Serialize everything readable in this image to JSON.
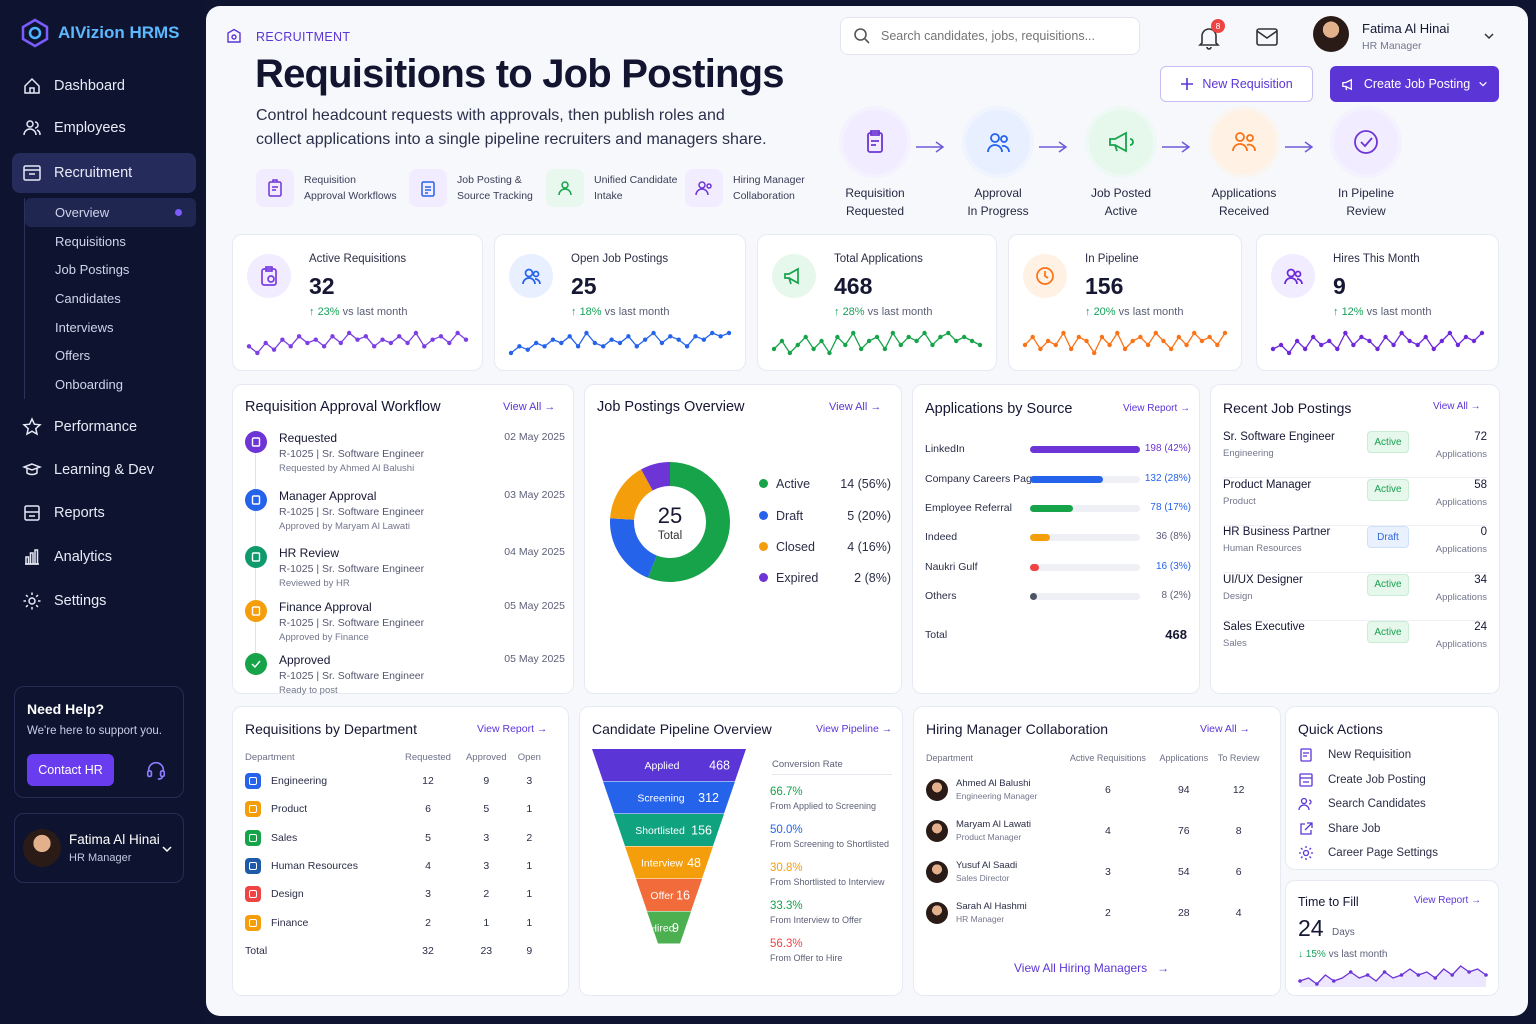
{
  "app": {
    "name": "AIVizion HRMS"
  },
  "sidebar": {
    "items": [
      {
        "label": "Dashboard",
        "icon": "home-icon"
      },
      {
        "label": "Employees",
        "icon": "users-icon"
      },
      {
        "label": "Recruitment",
        "icon": "briefcase-icon"
      },
      {
        "label": "Performance",
        "icon": "star-icon"
      },
      {
        "label": "Learning & Dev",
        "icon": "book-icon"
      },
      {
        "label": "Reports",
        "icon": "report-icon"
      },
      {
        "label": "Analytics",
        "icon": "analytics-icon"
      },
      {
        "label": "Settings",
        "icon": "gear-icon"
      }
    ],
    "subitems": [
      "Overview",
      "Requisitions",
      "Job Postings",
      "Candidates",
      "Interviews",
      "Offers",
      "Onboarding"
    ],
    "help": {
      "title": "Need Help?",
      "text": "We're here to support you.",
      "button": "Contact HR"
    },
    "user": {
      "name": "Fatima Al Hinai",
      "role": "HR Manager"
    }
  },
  "header": {
    "section": "RECRUITMENT",
    "title": "Requisitions to Job Postings",
    "lead1": "Control headcount requests with approvals, then publish roles and",
    "lead2": "collect applications into a single pipeline recruiters and managers share.",
    "search_placeholder": "Search candidates, jobs, requisitions...",
    "notifications": "8",
    "user": {
      "name": "Fatima Al Hinai",
      "role": "HR Manager"
    },
    "new_req": "New Requisition",
    "create_post": "Create Job Posting",
    "features": [
      {
        "l1": "Requisition",
        "l2": "Approval Workflows"
      },
      {
        "l1": "Job Posting &",
        "l2": "Source Tracking"
      },
      {
        "l1": "Unified Candidate",
        "l2": "Intake"
      },
      {
        "l1": "Hiring Manager",
        "l2": "Collaboration"
      }
    ],
    "stages": [
      {
        "l1": "Requisition",
        "l2": "Requested"
      },
      {
        "l1": "Approval",
        "l2": "In Progress"
      },
      {
        "l1": "Job Posted",
        "l2": "Active"
      },
      {
        "l1": "Applications",
        "l2": "Received"
      },
      {
        "l1": "In Pipeline",
        "l2": "Review"
      }
    ]
  },
  "kpis": [
    {
      "label": "Active Requisitions",
      "value": "32",
      "change": "23%",
      "suffix": "vs last month",
      "color": "#7b3fe4",
      "trend": [
        5,
        3,
        6,
        4,
        7,
        5,
        8,
        6,
        7,
        5,
        8,
        6,
        9,
        7,
        8,
        5,
        7,
        6,
        8,
        6,
        9,
        5,
        7,
        8,
        6,
        9,
        7
      ]
    },
    {
      "label": "Open Job Postings",
      "value": "25",
      "change": "18%",
      "suffix": "vs last month",
      "color": "#2563eb",
      "trend": [
        3,
        5,
        4,
        6,
        5,
        7,
        6,
        8,
        5,
        9,
        6,
        5,
        7,
        6,
        8,
        5,
        7,
        9,
        6,
        8,
        7,
        5,
        8,
        7,
        9,
        8,
        9
      ]
    },
    {
      "label": "Total Applications",
      "value": "468",
      "change": "28%",
      "suffix": "vs last month",
      "color": "#16a34a",
      "trend": [
        5,
        7,
        4,
        6,
        8,
        5,
        7,
        4,
        8,
        6,
        9,
        5,
        7,
        8,
        5,
        9,
        6,
        8,
        7,
        9,
        6,
        8,
        9,
        7,
        8,
        7,
        6
      ]
    },
    {
      "label": "In Pipeline",
      "value": "156",
      "change": "20%",
      "suffix": "vs last month",
      "color": "#f97316",
      "trend": [
        6,
        8,
        5,
        7,
        6,
        9,
        5,
        8,
        7,
        4,
        8,
        6,
        9,
        5,
        7,
        8,
        6,
        9,
        7,
        5,
        8,
        6,
        9,
        7,
        8,
        6,
        9
      ]
    },
    {
      "label": "Hires This Month",
      "value": "9",
      "change": "12%",
      "suffix": "vs last month",
      "color": "#6d28d9",
      "trend": [
        5,
        6,
        4,
        7,
        5,
        8,
        6,
        7,
        5,
        9,
        6,
        8,
        7,
        5,
        8,
        6,
        9,
        7,
        6,
        8,
        5,
        7,
        9,
        6,
        8,
        7,
        9
      ]
    }
  ],
  "workflow": {
    "title": "Requisition Approval Workflow",
    "link": "View All",
    "items": [
      {
        "title": "Requested",
        "sub": "R-1025  |  Sr. Software Engineer",
        "by": "Requested by Ahmed Al Balushi",
        "date": "02 May 2025",
        "color": "#6d35d6"
      },
      {
        "title": "Manager Approval",
        "sub": "R-1025  |  Sr. Software Engineer",
        "by": "Approved by Maryam Al Lawati",
        "date": "03 May 2025",
        "color": "#2563eb"
      },
      {
        "title": "HR Review",
        "sub": "R-1025  |  Sr. Software Engineer",
        "by": "Reviewed by HR",
        "date": "04 May 2025",
        "color": "#0f9a6d"
      },
      {
        "title": "Finance Approval",
        "sub": "R-1025  |  Sr. Software Engineer",
        "by": "Approved by Finance",
        "date": "05 May 2025",
        "color": "#f59e0b"
      },
      {
        "title": "Approved",
        "sub": "R-1025  |  Sr. Software Engineer",
        "by": "Ready to post",
        "date": "05 May 2025",
        "color": "#16a34a"
      }
    ]
  },
  "postings": {
    "title": "Job Postings Overview",
    "link": "View All",
    "total": "25",
    "total_label": "Total",
    "chart_data": {
      "type": "pie",
      "title": "Job Postings Overview",
      "categories": [
        "Active",
        "Draft",
        "Closed",
        "Expired"
      ],
      "values": [
        14,
        5,
        4,
        2
      ],
      "percents": [
        "56%",
        "20%",
        "16%",
        "8%"
      ],
      "colors": [
        "#16a34a",
        "#2563eb",
        "#f59e0b",
        "#6d35d6"
      ]
    }
  },
  "sources": {
    "title": "Applications by Source",
    "link": "View Report",
    "chart_data": {
      "type": "bar",
      "categories": [
        "LinkedIn",
        "Company Careers Page",
        "Employee Referral",
        "Indeed",
        "Naukri Gulf",
        "Others"
      ],
      "values": [
        198,
        132,
        78,
        36,
        16,
        8
      ],
      "labels": [
        "198 (42%)",
        "132 (28%)",
        "78 (17%)",
        "36 (8%)",
        "16 (3%)",
        "8 (2%)"
      ],
      "colors": [
        "#6d35d6",
        "#2563eb",
        "#16a34a",
        "#f59e0b",
        "#ef4444",
        "#4b5563"
      ],
      "value_colors": [
        "#6d35d6",
        "#2563eb",
        "#2563eb",
        "#5d6078",
        "#2563eb",
        "#5d6078"
      ]
    },
    "total_label": "Total",
    "total": "468"
  },
  "recent": {
    "title": "Recent Job Postings",
    "link": "View All",
    "unit": "Applications",
    "items": [
      {
        "title": "Sr. Software Engineer",
        "dept": "Engineering",
        "status": "Active",
        "apps": "72"
      },
      {
        "title": "Product Manager",
        "dept": "Product",
        "status": "Active",
        "apps": "58"
      },
      {
        "title": "HR Business Partner",
        "dept": "Human Resources",
        "status": "Draft",
        "apps": "0"
      },
      {
        "title": "UI/UX Designer",
        "dept": "Design",
        "status": "Active",
        "apps": "34"
      },
      {
        "title": "Sales Executive",
        "dept": "Sales",
        "status": "Active",
        "apps": "24"
      }
    ]
  },
  "departments": {
    "title": "Requisitions by Department",
    "link": "View Report",
    "headers": [
      "Department",
      "Requested",
      "Approved",
      "Open"
    ],
    "rows": [
      {
        "name": "Engineering",
        "req": "12",
        "app": "9",
        "open": "3",
        "color": "#2563eb"
      },
      {
        "name": "Product",
        "req": "6",
        "app": "5",
        "open": "1",
        "color": "#f59e0b"
      },
      {
        "name": "Sales",
        "req": "5",
        "app": "3",
        "open": "2",
        "color": "#16a34a"
      },
      {
        "name": "Human Resources",
        "req": "4",
        "app": "3",
        "open": "1",
        "color": "#1e5aa8"
      },
      {
        "name": "Design",
        "req": "3",
        "app": "2",
        "open": "1",
        "color": "#ef4444"
      },
      {
        "name": "Finance",
        "req": "2",
        "app": "1",
        "open": "1",
        "color": "#f59e0b"
      }
    ],
    "total": {
      "name": "Total",
      "req": "32",
      "app": "23",
      "open": "9"
    }
  },
  "pipeline": {
    "title": "Candidate Pipeline Overview",
    "link": "View Pipeline",
    "conv_title": "Conversion Rate",
    "chart_data": {
      "type": "bar",
      "categories": [
        "Applied",
        "Screening",
        "Shortlisted",
        "Interview",
        "Offer",
        "Hired"
      ],
      "values": [
        468,
        312,
        156,
        48,
        16,
        9
      ],
      "colors": [
        "#5b35d6",
        "#2563eb",
        "#10a37f",
        "#f59e0b",
        "#f26b3a",
        "#4caf50"
      ]
    },
    "conversions": [
      {
        "pct": "66.7%",
        "label": "From Applied to Screening",
        "color": "#16a34a"
      },
      {
        "pct": "50.0%",
        "label": "From Screening to Shortlisted",
        "color": "#2563eb"
      },
      {
        "pct": "30.8%",
        "label": "From Shortlisted to Interview",
        "color": "#f59e0b"
      },
      {
        "pct": "33.3%",
        "label": "From Interview to Offer",
        "color": "#16a34a"
      },
      {
        "pct": "56.3%",
        "label": "From Offer to Hire",
        "color": "#ef4444"
      }
    ]
  },
  "managers": {
    "title": "Hiring Manager Collaboration",
    "link": "View All",
    "footer": "View All Hiring Managers",
    "headers": [
      "Department",
      "Active Requisitions",
      "Applications",
      "To Review"
    ],
    "rows": [
      {
        "name": "Ahmed Al Balushi",
        "role": "Engineering Manager",
        "active": "6",
        "apps": "94",
        "review": "12"
      },
      {
        "name": "Maryam Al Lawati",
        "role": "Product Manager",
        "active": "4",
        "apps": "76",
        "review": "8"
      },
      {
        "name": "Yusuf Al Saadi",
        "role": "Sales Director",
        "active": "3",
        "apps": "54",
        "review": "6"
      },
      {
        "name": "Sarah Al Hashmi",
        "role": "HR Manager",
        "active": "2",
        "apps": "28",
        "review": "4"
      }
    ]
  },
  "quick": {
    "title": "Quick Actions",
    "items": [
      "New Requisition",
      "Create Job Posting",
      "Search Candidates",
      "Share Job",
      "Career Page Settings"
    ]
  },
  "ttf": {
    "title": "Time to Fill",
    "link": "View Report",
    "value": "24",
    "unit": "Days",
    "change": "15%",
    "suffix": "vs last month",
    "trend": [
      4,
      5,
      3,
      6,
      4,
      5,
      7,
      5,
      6,
      4,
      7,
      5,
      6,
      8,
      6,
      7,
      5,
      8,
      6,
      9,
      7,
      8,
      6
    ]
  }
}
